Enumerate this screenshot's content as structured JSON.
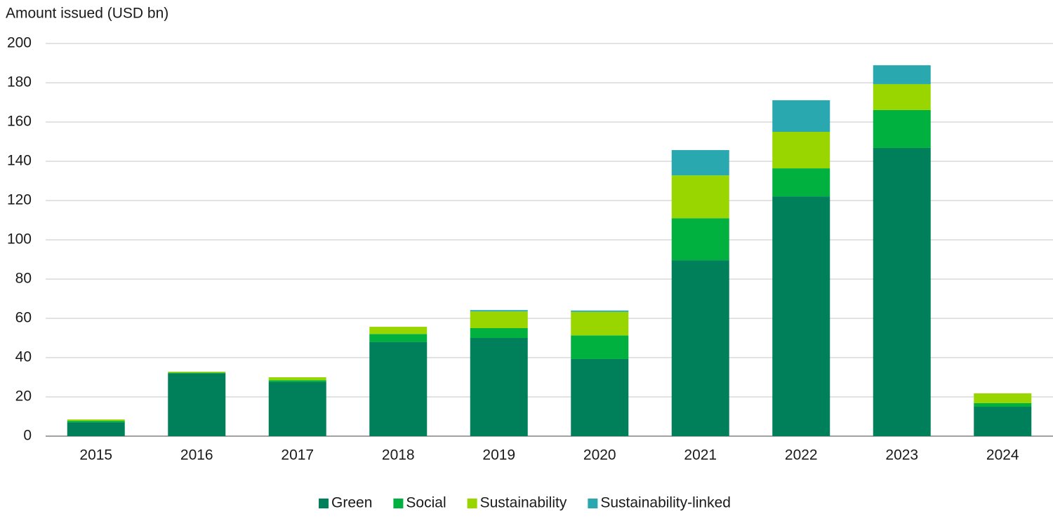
{
  "chart_data": {
    "type": "stacked_bar",
    "y_label": "Amount issued (USD bn)",
    "categories": [
      "2015",
      "2016",
      "2017",
      "2018",
      "2019",
      "2020",
      "2021",
      "2022",
      "2023",
      "2024"
    ],
    "series": [
      {
        "name": "Green",
        "color": "#00805a",
        "values": [
          7,
          32,
          27.5,
          48,
          50,
          39.3,
          89.6,
          122.1,
          146.8,
          15
        ]
      },
      {
        "name": "Social",
        "color": "#00b140",
        "values": [
          0.8,
          0.3,
          1,
          4,
          5,
          12,
          21.4,
          14.3,
          19.3,
          1.8
        ]
      },
      {
        "name": "Sustainability",
        "color": "#99d600",
        "values": [
          0.7,
          0.5,
          1.5,
          3.7,
          8.5,
          12,
          21.8,
          18.6,
          13.2,
          5
        ]
      },
      {
        "name": "Sustainability-linked",
        "color": "#2aa8b0",
        "values": [
          0,
          0,
          0,
          0,
          0.7,
          0.7,
          12.9,
          16.1,
          9.6,
          0
        ]
      }
    ],
    "ylim": [
      0,
      200
    ],
    "yticks": [
      0,
      20,
      40,
      60,
      80,
      100,
      120,
      140,
      160,
      180,
      200
    ],
    "grid": true,
    "legend": "bottom"
  }
}
